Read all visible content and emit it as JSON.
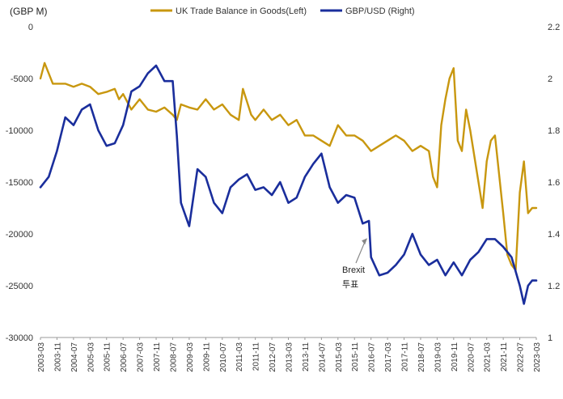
{
  "chart_data": {
    "type": "line",
    "unit_label": "(GBP M)",
    "legend_position": "top",
    "grid": false,
    "y_left": {
      "ylim": [
        -30000,
        0
      ],
      "ticks": [
        "0",
        "-5000",
        "-10000",
        "-15000",
        "-20000",
        "-25000",
        "-30000"
      ]
    },
    "y_right": {
      "ylim": [
        1,
        2.2
      ],
      "ticks": [
        "2.2",
        "2",
        "1.8",
        "1.6",
        "1.4",
        "1.2",
        "1"
      ]
    },
    "x": {
      "start": "2003-03",
      "end": "2023-03",
      "tick_labels": [
        "2003-03",
        "2003-11",
        "2004-07",
        "2005-03",
        "2005-11",
        "2006-07",
        "2007-03",
        "2007-11",
        "2008-07",
        "2009-03",
        "2009-11",
        "2010-07",
        "2011-03",
        "2011-11",
        "2012-07",
        "2013-03",
        "2013-11",
        "2014-07",
        "2015-03",
        "2015-11",
        "2016-07",
        "2017-03",
        "2017-11",
        "2018-07",
        "2019-03",
        "2019-11",
        "2020-07",
        "2021-03",
        "2021-11",
        "2022-07",
        "2023-03"
      ]
    },
    "series": [
      {
        "name": "UK Trade Balance in Goods(Left)",
        "axis": "left",
        "color": "#C8970F",
        "x": [
          "2003-03",
          "2003-05",
          "2003-07",
          "2003-09",
          "2003-11",
          "2004-03",
          "2004-07",
          "2004-11",
          "2005-03",
          "2005-07",
          "2005-11",
          "2006-03",
          "2006-05",
          "2006-07",
          "2006-11",
          "2007-03",
          "2007-07",
          "2007-11",
          "2008-03",
          "2008-07",
          "2008-09",
          "2008-11",
          "2009-03",
          "2009-07",
          "2009-11",
          "2010-03",
          "2010-07",
          "2010-11",
          "2011-03",
          "2011-05",
          "2011-09",
          "2011-11",
          "2012-03",
          "2012-07",
          "2012-11",
          "2013-03",
          "2013-07",
          "2013-11",
          "2014-03",
          "2014-07",
          "2014-11",
          "2015-03",
          "2015-07",
          "2015-11",
          "2016-03",
          "2016-07",
          "2016-11",
          "2017-03",
          "2017-07",
          "2017-11",
          "2018-03",
          "2018-07",
          "2018-11",
          "2019-01",
          "2019-03",
          "2019-05",
          "2019-07",
          "2019-09",
          "2019-11",
          "2020-01",
          "2020-03",
          "2020-05",
          "2020-07",
          "2020-11",
          "2021-01",
          "2021-03",
          "2021-05",
          "2021-07",
          "2021-11",
          "2022-01",
          "2022-03",
          "2022-05",
          "2022-07",
          "2022-09",
          "2022-11",
          "2023-01",
          "2023-03"
        ],
        "values": [
          -5000,
          -3500,
          -4500,
          -5500,
          -5500,
          -5500,
          -5800,
          -5500,
          -5800,
          -6500,
          -6300,
          -6000,
          -7000,
          -6500,
          -8000,
          -7000,
          -8000,
          -8200,
          -7800,
          -8500,
          -9000,
          -7500,
          -7800,
          -8000,
          -7000,
          -8000,
          -7500,
          -8500,
          -9000,
          -6000,
          -8500,
          -9000,
          -8000,
          -9000,
          -8500,
          -9500,
          -9000,
          -10500,
          -10500,
          -11000,
          -11500,
          -9500,
          -10500,
          -10500,
          -11000,
          -12000,
          -11500,
          -11000,
          -10500,
          -11000,
          -12000,
          -11500,
          -12000,
          -14500,
          -15500,
          -9500,
          -7000,
          -5000,
          -4000,
          -11000,
          -12000,
          -8000,
          -10000,
          -15000,
          -17500,
          -13000,
          -11000,
          -10500,
          -18000,
          -22000,
          -23000,
          -23500,
          -16000,
          -13000,
          -18000,
          -17500,
          -17500
        ]
      },
      {
        "name": "GBP/USD (Right)",
        "axis": "right",
        "color": "#1A2E9C",
        "x": [
          "2003-03",
          "2003-07",
          "2003-11",
          "2004-03",
          "2004-07",
          "2004-11",
          "2005-03",
          "2005-07",
          "2005-11",
          "2006-03",
          "2006-07",
          "2006-11",
          "2007-03",
          "2007-07",
          "2007-11",
          "2008-03",
          "2008-07",
          "2008-09",
          "2008-11",
          "2009-03",
          "2009-07",
          "2009-11",
          "2010-03",
          "2010-07",
          "2010-11",
          "2011-03",
          "2011-07",
          "2011-11",
          "2012-03",
          "2012-07",
          "2012-11",
          "2013-03",
          "2013-07",
          "2013-11",
          "2014-03",
          "2014-07",
          "2014-11",
          "2015-03",
          "2015-07",
          "2015-11",
          "2016-03",
          "2016-06",
          "2016-07",
          "2016-11",
          "2017-03",
          "2017-07",
          "2017-11",
          "2018-03",
          "2018-07",
          "2018-11",
          "2019-03",
          "2019-07",
          "2019-11",
          "2020-03",
          "2020-07",
          "2020-11",
          "2021-03",
          "2021-07",
          "2021-11",
          "2022-03",
          "2022-07",
          "2022-09",
          "2022-11",
          "2023-01",
          "2023-03"
        ],
        "values": [
          1.58,
          1.62,
          1.72,
          1.85,
          1.82,
          1.88,
          1.9,
          1.8,
          1.74,
          1.75,
          1.82,
          1.95,
          1.97,
          2.02,
          2.05,
          1.99,
          1.99,
          1.78,
          1.52,
          1.43,
          1.65,
          1.62,
          1.52,
          1.48,
          1.58,
          1.61,
          1.63,
          1.57,
          1.58,
          1.55,
          1.6,
          1.52,
          1.54,
          1.62,
          1.67,
          1.71,
          1.58,
          1.52,
          1.55,
          1.54,
          1.44,
          1.45,
          1.31,
          1.24,
          1.25,
          1.28,
          1.32,
          1.4,
          1.32,
          1.28,
          1.3,
          1.24,
          1.29,
          1.24,
          1.3,
          1.33,
          1.38,
          1.38,
          1.35,
          1.31,
          1.2,
          1.13,
          1.2,
          1.22,
          1.22
        ]
      }
    ],
    "annotation": {
      "text": "Brexit\n투표",
      "x": "2016-06",
      "y": 1.39
    }
  }
}
